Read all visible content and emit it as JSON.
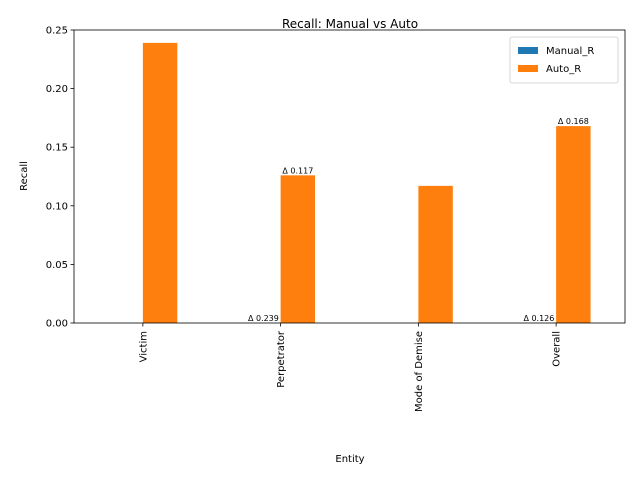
{
  "chart_data": {
    "type": "bar",
    "title": "Recall: Manual vs Auto",
    "xlabel": "Entity",
    "ylabel": "Recall",
    "categories": [
      "Victim",
      "Perpetrator",
      "Mode of Demise",
      "Overall"
    ],
    "series": [
      {
        "name": "Manual_R",
        "color": "#1f77b4",
        "values": [
          0.0,
          0.0,
          0.0,
          0.0
        ]
      },
      {
        "name": "Auto_R",
        "color": "#ff7f0e",
        "values": [
          0.239,
          0.126,
          0.117,
          0.168
        ]
      }
    ],
    "ylim": [
      0,
      0.25
    ],
    "yticks": [
      "0.00",
      "0.05",
      "0.10",
      "0.15",
      "0.20",
      "0.25"
    ],
    "grid": false,
    "legend_position": "top-right",
    "annotations": [
      {
        "text": "Δ 0.239",
        "category": "Perpetrator",
        "series": "Manual_R",
        "y": 0.0
      },
      {
        "text": "Δ 0.117",
        "category": "Perpetrator",
        "series": "Auto_R",
        "y": 0.126
      },
      {
        "text": "Δ 0.126",
        "category": "Overall",
        "series": "Manual_R",
        "y": 0.0
      },
      {
        "text": "Δ 0.168",
        "category": "Overall",
        "series": "Auto_R",
        "y": 0.168
      }
    ]
  }
}
